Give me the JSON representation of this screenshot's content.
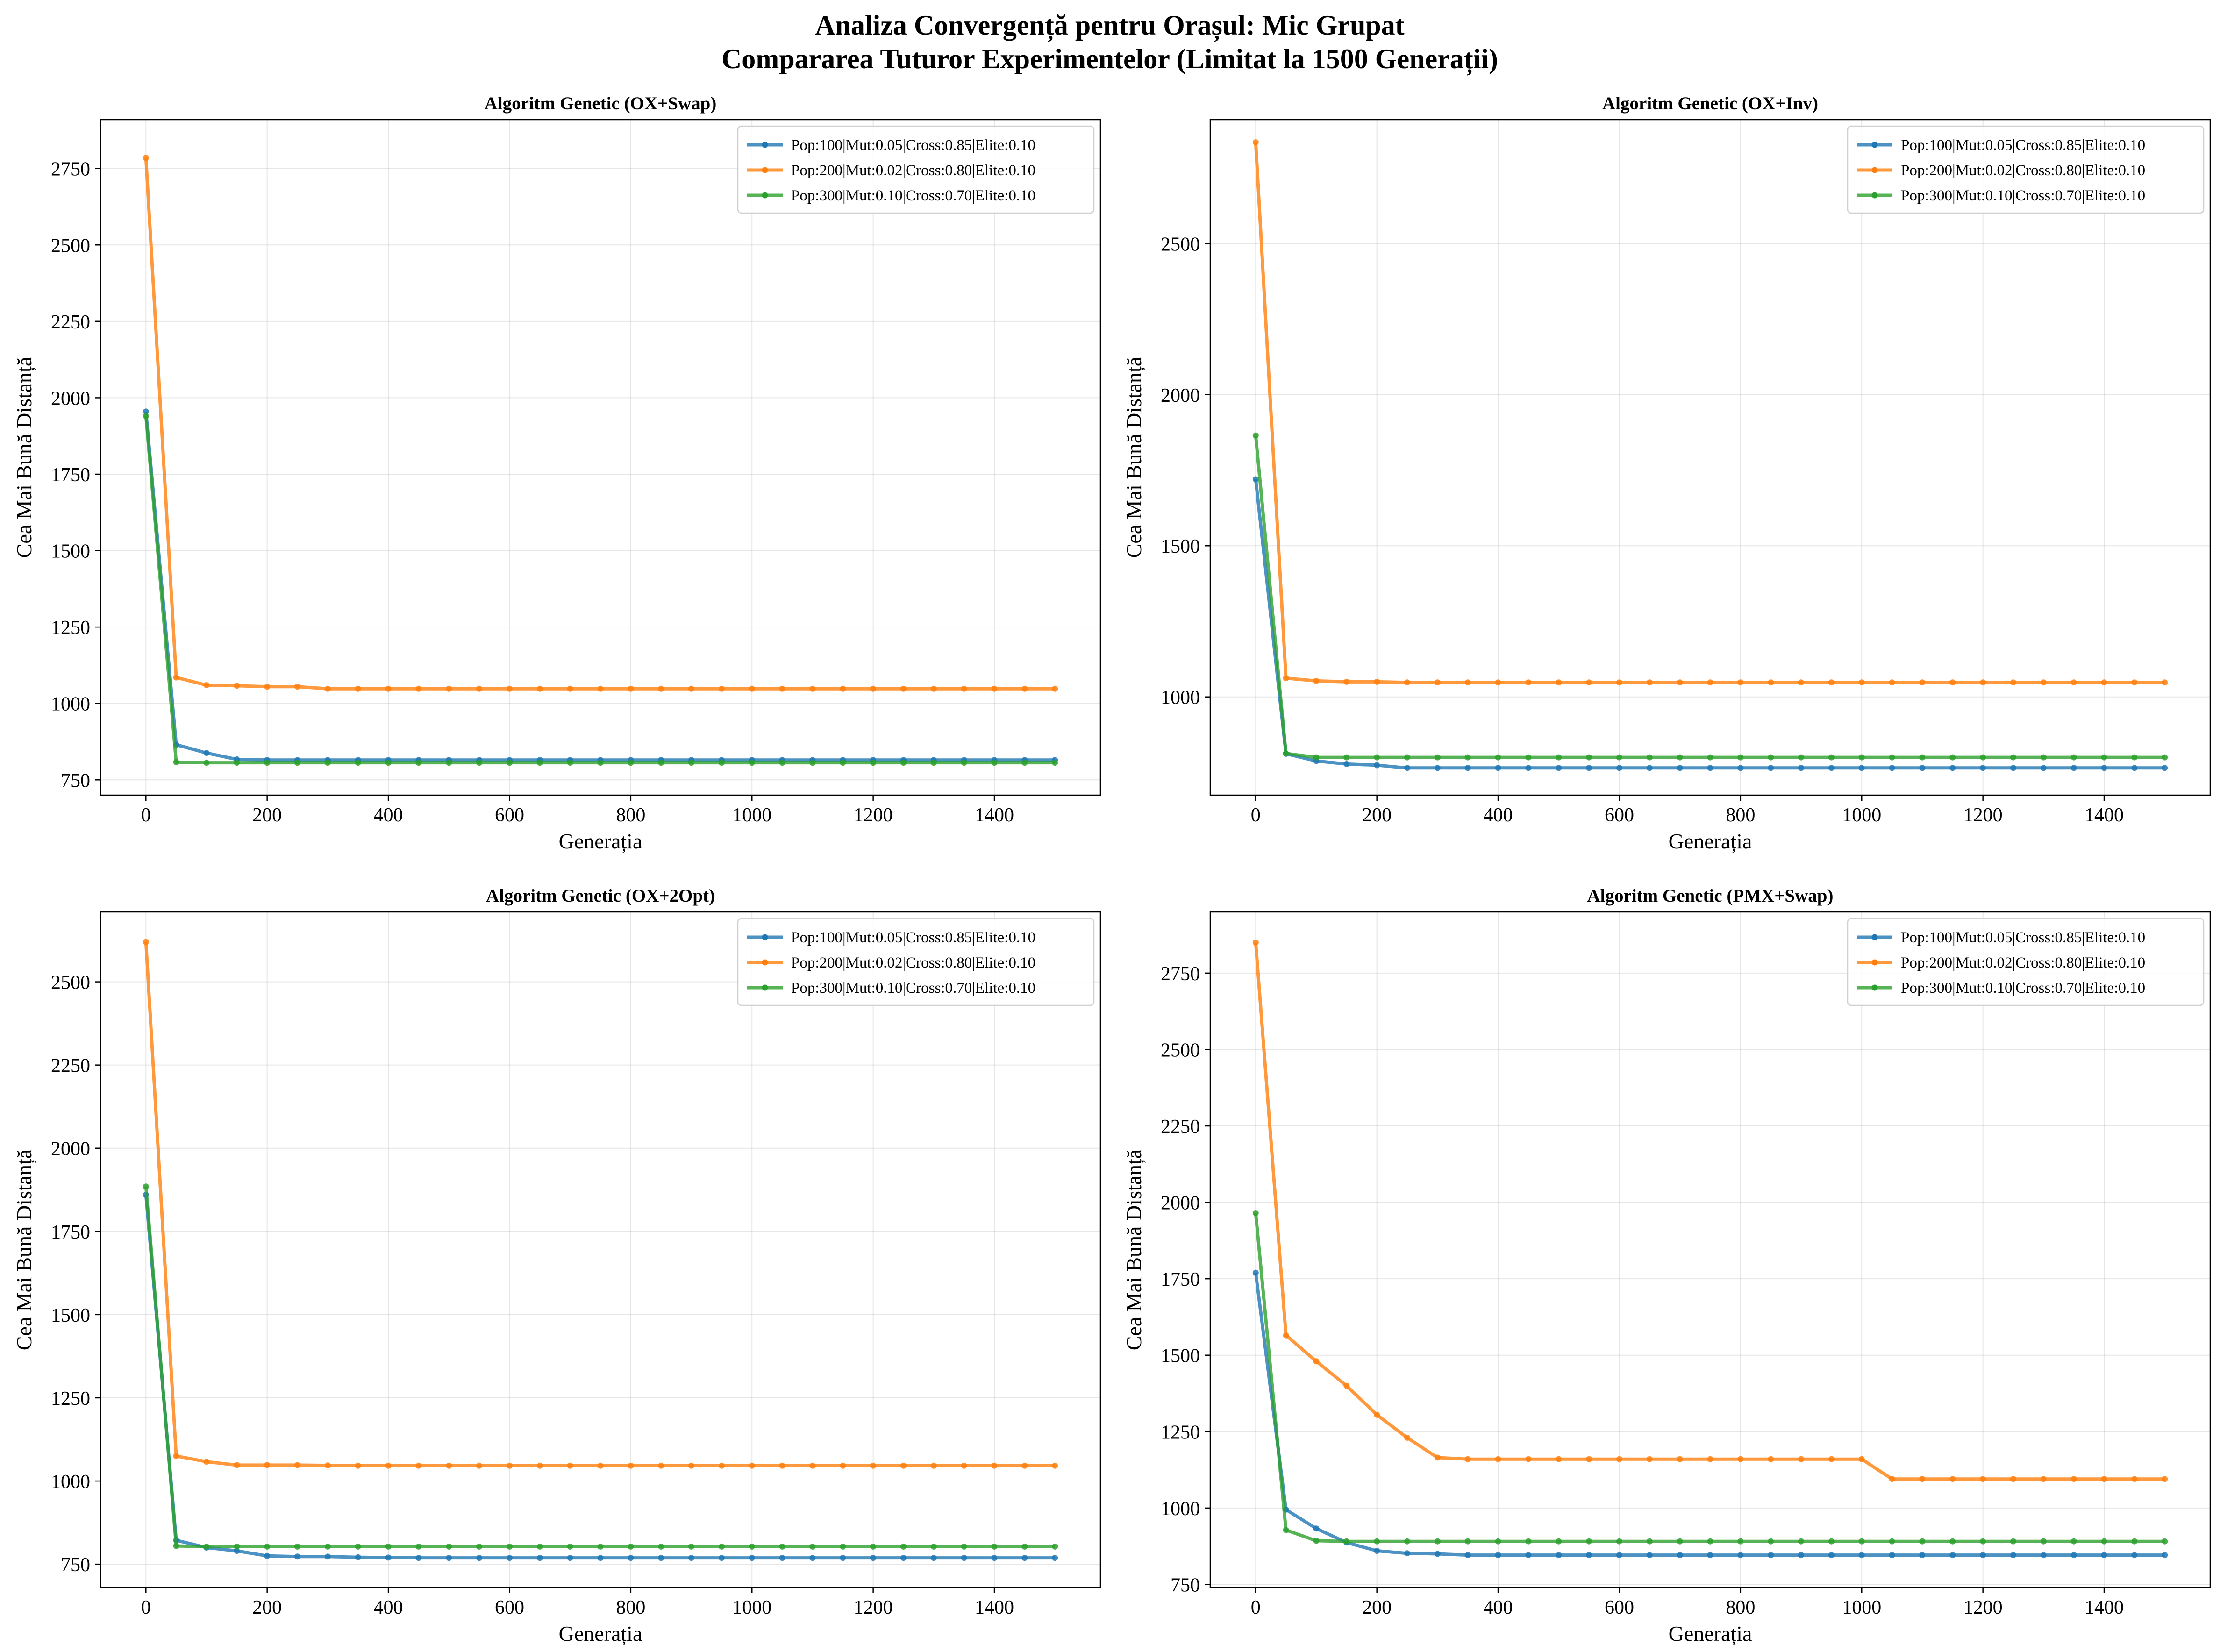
{
  "figure": {
    "title_line1": "Analiza Convergență pentru Orașul: Mic Grupat",
    "title_line2": "Compararea Tuturor Experimentelor (Limitat la 1500 Generații)"
  },
  "chart_data": [
    {
      "type": "line",
      "title": "Algoritm Genetic (OX+Swap)",
      "xlabel": "Generația",
      "ylabel": "Cea Mai Bună Distanță",
      "xlim": [
        -75,
        1575
      ],
      "ylim": [
        700,
        2910
      ],
      "xticks": [
        0,
        200,
        400,
        600,
        800,
        1000,
        1200,
        1400
      ],
      "yticks": [
        750,
        1000,
        1250,
        1500,
        1750,
        2000,
        2250,
        2500,
        2750
      ],
      "grid": true,
      "legend_position": "upper right",
      "x": [
        0,
        50,
        100,
        150,
        200,
        250,
        300,
        350,
        400,
        450,
        500,
        550,
        600,
        650,
        700,
        750,
        800,
        850,
        900,
        950,
        1000,
        1050,
        1100,
        1150,
        1200,
        1250,
        1300,
        1350,
        1400,
        1450,
        1500
      ],
      "series": [
        {
          "name": "Pop:100|Mut:0.05|Cross:0.85|Elite:0.10",
          "color": "#1f77b4",
          "values": [
            1955,
            865,
            838,
            817,
            815,
            815,
            815,
            815,
            815,
            815,
            815,
            815,
            815,
            815,
            815,
            815,
            815,
            815,
            815,
            815,
            815,
            815,
            815,
            815,
            815,
            815,
            815,
            815,
            815,
            815,
            815
          ]
        },
        {
          "name": "Pop:200|Mut:0.02|Cross:0.80|Elite:0.10",
          "color": "#ff7f0e",
          "values": [
            2785,
            1085,
            1060,
            1058,
            1055,
            1055,
            1048,
            1048,
            1048,
            1048,
            1048,
            1048,
            1048,
            1048,
            1048,
            1048,
            1048,
            1048,
            1048,
            1048,
            1048,
            1048,
            1048,
            1048,
            1048,
            1048,
            1048,
            1048,
            1048,
            1048,
            1048
          ]
        },
        {
          "name": "Pop:300|Mut:0.10|Cross:0.70|Elite:0.10",
          "color": "#2ca02c",
          "values": [
            1940,
            808,
            806,
            806,
            806,
            806,
            806,
            806,
            806,
            806,
            806,
            806,
            806,
            806,
            806,
            806,
            806,
            806,
            806,
            806,
            806,
            806,
            806,
            806,
            806,
            806,
            806,
            806,
            806,
            806,
            806
          ]
        }
      ]
    },
    {
      "type": "line",
      "title": "Algoritm Genetic (OX+Inv)",
      "xlabel": "Generația",
      "ylabel": "Cea Mai Bună Distanță",
      "xlim": [
        -75,
        1575
      ],
      "ylim": [
        675,
        2910
      ],
      "xticks": [
        0,
        200,
        400,
        600,
        800,
        1000,
        1200,
        1400
      ],
      "yticks": [
        1000,
        1500,
        2000,
        2500
      ],
      "grid": true,
      "legend_position": "upper right",
      "x": [
        0,
        50,
        100,
        150,
        200,
        250,
        300,
        350,
        400,
        450,
        500,
        550,
        600,
        650,
        700,
        750,
        800,
        850,
        900,
        950,
        1000,
        1050,
        1100,
        1150,
        1200,
        1250,
        1300,
        1350,
        1400,
        1450,
        1500
      ],
      "series": [
        {
          "name": "Pop:100|Mut:0.05|Cross:0.85|Elite:0.10",
          "color": "#1f77b4",
          "values": [
            1720,
            812,
            788,
            778,
            774,
            765,
            765,
            765,
            765,
            765,
            765,
            765,
            765,
            765,
            765,
            765,
            765,
            765,
            765,
            765,
            765,
            765,
            765,
            765,
            765,
            765,
            765,
            765,
            765,
            765,
            765
          ]
        },
        {
          "name": "Pop:200|Mut:0.02|Cross:0.80|Elite:0.10",
          "color": "#ff7f0e",
          "values": [
            2835,
            1062,
            1053,
            1050,
            1050,
            1048,
            1048,
            1048,
            1048,
            1048,
            1048,
            1048,
            1048,
            1048,
            1048,
            1048,
            1048,
            1048,
            1048,
            1048,
            1048,
            1048,
            1048,
            1048,
            1048,
            1048,
            1048,
            1048,
            1048,
            1048,
            1048
          ]
        },
        {
          "name": "Pop:300|Mut:0.10|Cross:0.70|Elite:0.10",
          "color": "#2ca02c",
          "values": [
            1865,
            813,
            800,
            800,
            800,
            800,
            800,
            800,
            800,
            800,
            800,
            800,
            800,
            800,
            800,
            800,
            800,
            800,
            800,
            800,
            800,
            800,
            800,
            800,
            800,
            800,
            800,
            800,
            800,
            800,
            800
          ]
        }
      ]
    },
    {
      "type": "line",
      "title": "Algoritm Genetic (OX+2Opt)",
      "xlabel": "Generația",
      "ylabel": "Cea Mai Bună Distanță",
      "xlim": [
        -75,
        1575
      ],
      "ylim": [
        680,
        2710
      ],
      "xticks": [
        0,
        200,
        400,
        600,
        800,
        1000,
        1200,
        1400
      ],
      "yticks": [
        750,
        1000,
        1250,
        1500,
        1750,
        2000,
        2250,
        2500
      ],
      "grid": true,
      "legend_position": "upper right",
      "x": [
        0,
        50,
        100,
        150,
        200,
        250,
        300,
        350,
        400,
        450,
        500,
        550,
        600,
        650,
        700,
        750,
        800,
        850,
        900,
        950,
        1000,
        1050,
        1100,
        1150,
        1200,
        1250,
        1300,
        1350,
        1400,
        1450,
        1500
      ],
      "series": [
        {
          "name": "Pop:100|Mut:0.05|Cross:0.85|Elite:0.10",
          "color": "#1f77b4",
          "values": [
            1860,
            822,
            800,
            790,
            775,
            773,
            773,
            771,
            770,
            769,
            769,
            769,
            769,
            769,
            769,
            769,
            769,
            769,
            769,
            769,
            769,
            769,
            769,
            769,
            769,
            769,
            769,
            769,
            769,
            769,
            769
          ]
        },
        {
          "name": "Pop:200|Mut:0.02|Cross:0.80|Elite:0.10",
          "color": "#ff7f0e",
          "values": [
            2620,
            1075,
            1058,
            1048,
            1048,
            1048,
            1047,
            1046,
            1046,
            1046,
            1046,
            1046,
            1046,
            1046,
            1046,
            1046,
            1046,
            1046,
            1046,
            1046,
            1046,
            1046,
            1046,
            1046,
            1046,
            1046,
            1046,
            1046,
            1046,
            1046,
            1046
          ]
        },
        {
          "name": "Pop:300|Mut:0.10|Cross:0.70|Elite:0.10",
          "color": "#2ca02c",
          "values": [
            1885,
            805,
            803,
            803,
            803,
            803,
            803,
            803,
            803,
            803,
            803,
            803,
            803,
            803,
            803,
            803,
            803,
            803,
            803,
            803,
            803,
            803,
            803,
            803,
            803,
            803,
            803,
            803,
            803,
            803,
            803
          ]
        }
      ]
    },
    {
      "type": "line",
      "title": "Algoritm Genetic (PMX+Swap)",
      "xlabel": "Generația",
      "ylabel": "Cea Mai Bună Distanță",
      "xlim": [
        -75,
        1575
      ],
      "ylim": [
        740,
        2950
      ],
      "xticks": [
        0,
        200,
        400,
        600,
        800,
        1000,
        1200,
        1400
      ],
      "yticks": [
        750,
        1000,
        1250,
        1500,
        1750,
        2000,
        2250,
        2500,
        2750
      ],
      "grid": true,
      "legend_position": "upper right",
      "x": [
        0,
        50,
        100,
        150,
        200,
        250,
        300,
        350,
        400,
        450,
        500,
        550,
        600,
        650,
        700,
        750,
        800,
        850,
        900,
        950,
        1000,
        1050,
        1100,
        1150,
        1200,
        1250,
        1300,
        1350,
        1400,
        1450,
        1500
      ],
      "series": [
        {
          "name": "Pop:100|Mut:0.05|Cross:0.85|Elite:0.10",
          "color": "#1f77b4",
          "values": [
            1770,
            995,
            933,
            887,
            860,
            852,
            850,
            846,
            846,
            846,
            846,
            846,
            846,
            846,
            846,
            846,
            846,
            846,
            846,
            846,
            846,
            846,
            846,
            846,
            846,
            846,
            846,
            846,
            846,
            846,
            846
          ]
        },
        {
          "name": "Pop:200|Mut:0.02|Cross:0.80|Elite:0.10",
          "color": "#ff7f0e",
          "values": [
            2850,
            1565,
            1480,
            1400,
            1305,
            1230,
            1165,
            1160,
            1160,
            1160,
            1160,
            1160,
            1160,
            1160,
            1160,
            1160,
            1160,
            1160,
            1160,
            1160,
            1160,
            1095,
            1095,
            1095,
            1095,
            1095,
            1095,
            1095,
            1095,
            1095,
            1095
          ]
        },
        {
          "name": "Pop:300|Mut:0.10|Cross:0.70|Elite:0.10",
          "color": "#2ca02c",
          "values": [
            1965,
            928,
            893,
            891,
            891,
            891,
            891,
            891,
            891,
            891,
            891,
            891,
            891,
            891,
            891,
            891,
            891,
            891,
            891,
            891,
            891,
            891,
            891,
            891,
            891,
            891,
            891,
            891,
            891,
            891,
            891
          ]
        }
      ]
    }
  ]
}
